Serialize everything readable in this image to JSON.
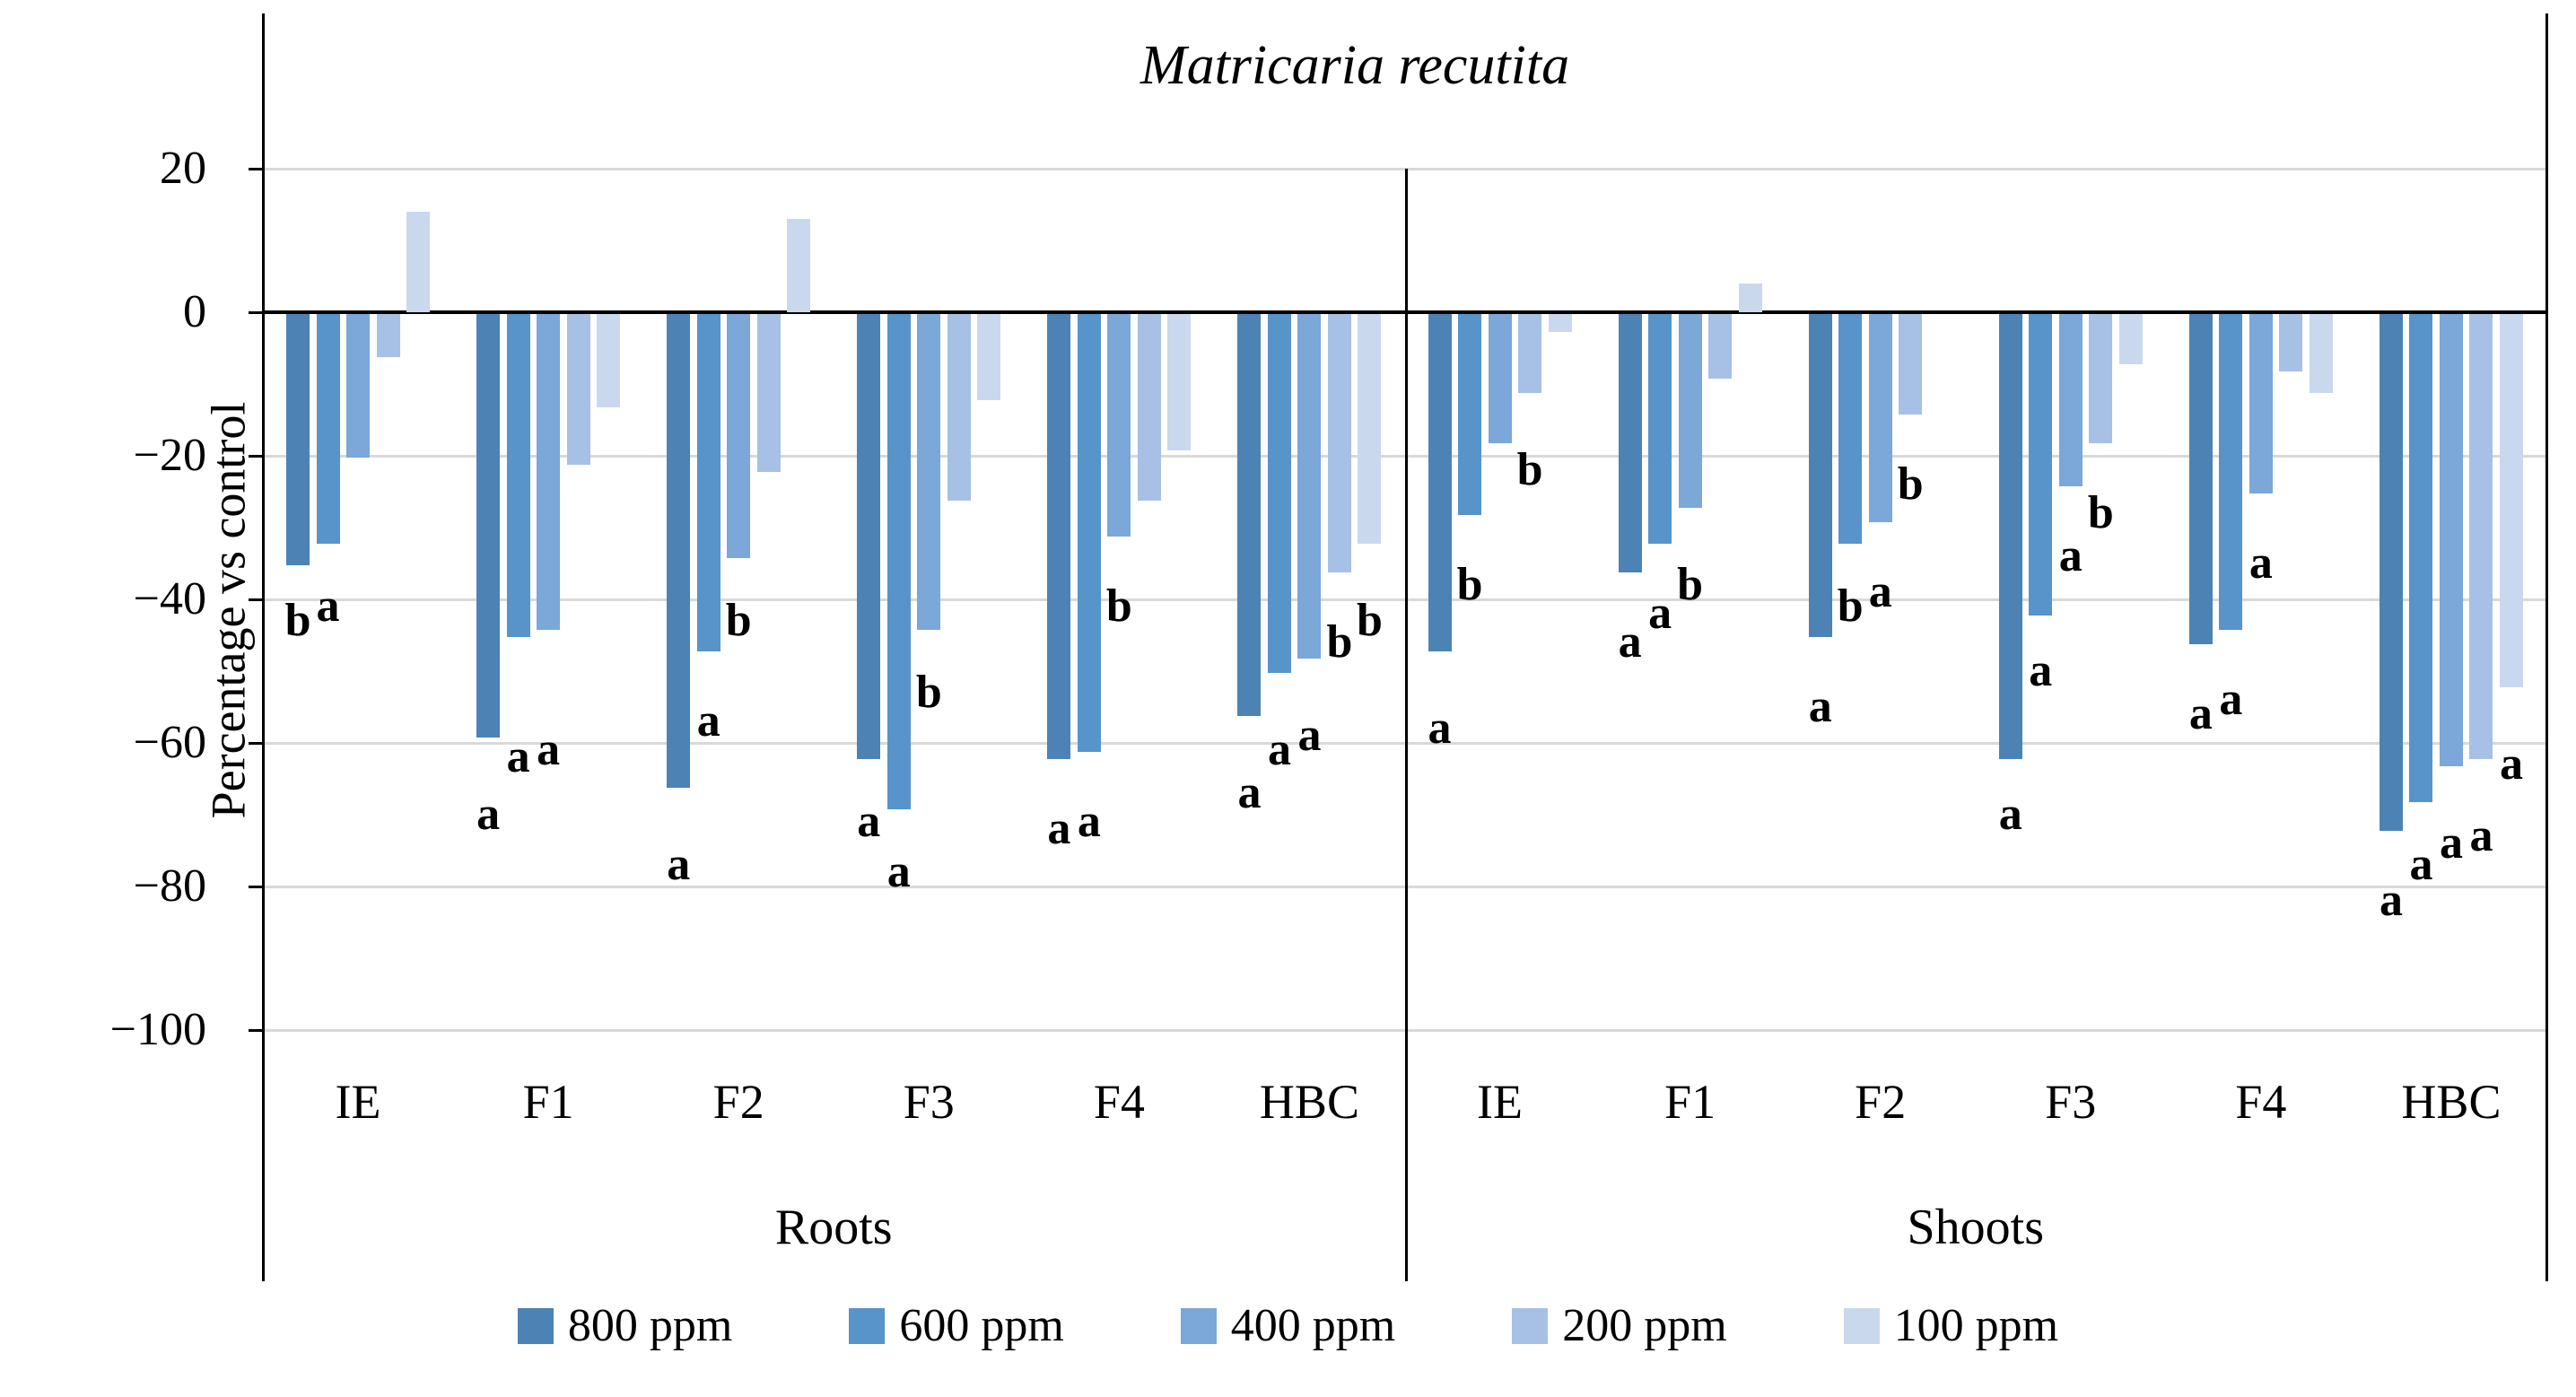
{
  "title": "Matricaria recutita",
  "y_axis": {
    "label": "Percentage vs control",
    "ticks": [
      20,
      0,
      -20,
      -40,
      -60,
      -80,
      -100
    ]
  },
  "legend": [
    {
      "label": "800 ppm",
      "color": "#4d82b4"
    },
    {
      "label": "600 ppm",
      "color": "#5893ca"
    },
    {
      "label": "400 ppm",
      "color": "#7ba7d9"
    },
    {
      "label": "200 ppm",
      "color": "#a6c1e5"
    },
    {
      "label": "100 ppm",
      "color": "#cad8ed"
    }
  ],
  "chart_data": {
    "type": "bar",
    "title": "Matricaria recutita",
    "ylabel": "Percentage vs control",
    "ylim": [
      -100,
      20
    ],
    "grid": true,
    "legend_position": "bottom",
    "series": [
      "800 ppm",
      "600 ppm",
      "400 ppm",
      "200 ppm",
      "100 ppm"
    ],
    "colors": [
      "#4d82b4",
      "#5893ca",
      "#7ba7d9",
      "#a6c1e5",
      "#cad8ed"
    ],
    "panels": [
      {
        "label": "Roots",
        "groups": [
          {
            "name": "IE",
            "values": [
              -35,
              -32,
              -20,
              -6,
              14
            ],
            "letters": [
              {
                "s": 0,
                "t": "b",
                "at": -43
              },
              {
                "s": 1,
                "t": "a",
                "at": -41
              }
            ]
          },
          {
            "name": "F1",
            "values": [
              -59,
              -45,
              -44,
              -21,
              -13
            ],
            "letters": [
              {
                "s": 0,
                "t": "a",
                "at": -70
              },
              {
                "s": 1,
                "t": "a",
                "at": -62
              },
              {
                "s": 2,
                "t": "a",
                "at": -61
              }
            ]
          },
          {
            "name": "F2",
            "values": [
              -66,
              -47,
              -34,
              -22,
              13
            ],
            "letters": [
              {
                "s": 0,
                "t": "a",
                "at": -77
              },
              {
                "s": 1,
                "t": "a",
                "at": -57
              },
              {
                "s": 2,
                "t": "b",
                "at": -43
              }
            ]
          },
          {
            "name": "F3",
            "values": [
              -62,
              -69,
              -44,
              -26,
              -12
            ],
            "letters": [
              {
                "s": 0,
                "t": "a",
                "at": -71
              },
              {
                "s": 1,
                "t": "a",
                "at": -78
              },
              {
                "s": 2,
                "t": "b",
                "at": -53
              }
            ]
          },
          {
            "name": "F4",
            "values": [
              -62,
              -61,
              -31,
              -26,
              -19
            ],
            "letters": [
              {
                "s": 0,
                "t": "a",
                "at": -72
              },
              {
                "s": 1,
                "t": "a",
                "at": -71
              },
              {
                "s": 2,
                "t": "b",
                "at": -41
              }
            ]
          },
          {
            "name": "HBC",
            "values": [
              -56,
              -50,
              -48,
              -36,
              -32
            ],
            "letters": [
              {
                "s": 0,
                "t": "a",
                "at": -67
              },
              {
                "s": 1,
                "t": "a",
                "at": -61
              },
              {
                "s": 2,
                "t": "a",
                "at": -59
              },
              {
                "s": 3,
                "t": "b",
                "at": -46
              },
              {
                "s": 4,
                "t": "b",
                "at": -43
              }
            ]
          }
        ]
      },
      {
        "label": "Shoots",
        "groups": [
          {
            "name": "IE",
            "values": [
              -47,
              -28,
              -18,
              -11,
              -2.5
            ],
            "letters": [
              {
                "s": 0,
                "t": "a",
                "at": -58
              },
              {
                "s": 1,
                "t": "b",
                "at": -38
              },
              {
                "s": 3,
                "t": "b",
                "at": -22
              }
            ]
          },
          {
            "name": "F1",
            "values": [
              -36,
              -32,
              -27,
              -9,
              4
            ],
            "letters": [
              {
                "s": 0,
                "t": "a",
                "at": -46
              },
              {
                "s": 1,
                "t": "a",
                "at": -42
              },
              {
                "s": 2,
                "t": "b",
                "at": -38
              }
            ]
          },
          {
            "name": "F2",
            "values": [
              -45,
              -32,
              -29,
              -14,
              0
            ],
            "letters": [
              {
                "s": 0,
                "t": "a",
                "at": -55
              },
              {
                "s": 1,
                "t": "b",
                "at": -41
              },
              {
                "s": 2,
                "t": "a",
                "at": -39
              },
              {
                "s": 3,
                "t": "b",
                "at": -24
              }
            ]
          },
          {
            "name": "F3",
            "values": [
              -62,
              -42,
              -24,
              -18,
              -7
            ],
            "letters": [
              {
                "s": 0,
                "t": "a",
                "at": -70
              },
              {
                "s": 1,
                "t": "a",
                "at": -50
              },
              {
                "s": 2,
                "t": "a",
                "at": -34
              },
              {
                "s": 3,
                "t": "b",
                "at": -28
              }
            ]
          },
          {
            "name": "F4",
            "values": [
              -46,
              -44,
              -25,
              -8,
              -11
            ],
            "letters": [
              {
                "s": 0,
                "t": "a",
                "at": -56
              },
              {
                "s": 1,
                "t": "a",
                "at": -54
              },
              {
                "s": 2,
                "t": "a",
                "at": -35
              }
            ]
          },
          {
            "name": "HBC",
            "values": [
              -72,
              -68,
              -63,
              -62,
              -52
            ],
            "letters": [
              {
                "s": 0,
                "t": "a",
                "at": -82
              },
              {
                "s": 1,
                "t": "a",
                "at": -77
              },
              {
                "s": 2,
                "t": "a",
                "at": -74
              },
              {
                "s": 3,
                "t": "a",
                "at": -73
              },
              {
                "s": 4,
                "t": "a",
                "at": -63
              }
            ]
          }
        ]
      }
    ]
  }
}
